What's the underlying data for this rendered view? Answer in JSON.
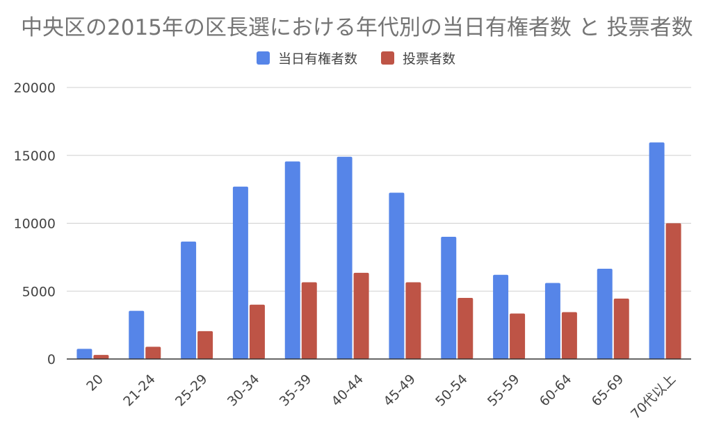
{
  "chart_data": {
    "type": "bar",
    "title": "中央区の2015年の区長選における年代別の当日有権者数 と 投票者数",
    "categories": [
      "20",
      "21-24",
      "25-29",
      "30-34",
      "35-39",
      "40-44",
      "45-49",
      "50-54",
      "55-59",
      "60-64",
      "65-69",
      "70代以上"
    ],
    "series": [
      {
        "name": "当日有権者数",
        "color": "#5685e8",
        "values": [
          750,
          3550,
          8650,
          12700,
          14550,
          14900,
          12250,
          9000,
          6200,
          5600,
          6650,
          15950
        ]
      },
      {
        "name": "投票者数",
        "color": "#be5446",
        "values": [
          300,
          900,
          2050,
          4000,
          5650,
          6350,
          5650,
          4500,
          3350,
          3450,
          4450,
          10000
        ]
      }
    ],
    "ylim": [
      0,
      20000
    ],
    "yticks": [
      0,
      5000,
      10000,
      15000,
      20000
    ],
    "xlabel": "",
    "ylabel": "",
    "grid": true,
    "legend_position": "top"
  }
}
